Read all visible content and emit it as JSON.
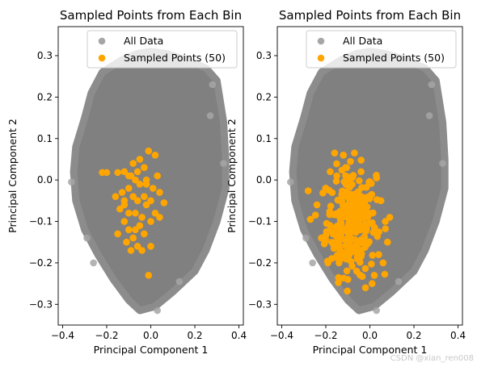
{
  "chart_data": [
    {
      "type": "scatter",
      "title": "Sampled Points from Each Bin",
      "xlabel": "Principal Component 1",
      "ylabel": "Principal Component 2",
      "xlim": [
        -0.42,
        0.42
      ],
      "ylim": [
        -0.35,
        0.37
      ],
      "xticks": [
        "−0.4",
        "−0.2",
        "0.0",
        "0.2",
        "0.4"
      ],
      "yticks": [
        "−0.3",
        "−0.2",
        "−0.1",
        "0.0",
        "0.1",
        "0.2",
        "0.3"
      ],
      "grid": false,
      "legend_position": "top-right",
      "series": [
        {
          "name": "All Data",
          "color": "#808080",
          "region_outline": [
            [
              0.0,
              0.31
            ],
            [
              0.07,
              0.305
            ],
            [
              0.16,
              0.29
            ],
            [
              0.25,
              0.27
            ],
            [
              0.3,
              0.24
            ],
            [
              0.33,
              0.14
            ],
            [
              0.34,
              0.05
            ],
            [
              0.34,
              -0.02
            ],
            [
              0.3,
              -0.1
            ],
            [
              0.25,
              -0.17
            ],
            [
              0.2,
              -0.22
            ],
            [
              0.1,
              -0.27
            ],
            [
              0.02,
              -0.305
            ],
            [
              -0.05,
              -0.315
            ],
            [
              -0.1,
              -0.29
            ],
            [
              -0.17,
              -0.24
            ],
            [
              -0.24,
              -0.18
            ],
            [
              -0.3,
              -0.12
            ],
            [
              -0.34,
              -0.05
            ],
            [
              -0.35,
              0.02
            ],
            [
              -0.34,
              0.08
            ],
            [
              -0.3,
              0.15
            ],
            [
              -0.27,
              0.21
            ],
            [
              -0.22,
              0.26
            ],
            [
              -0.13,
              0.29
            ],
            [
              -0.06,
              0.305
            ]
          ],
          "outliers": [
            [
              0.28,
              0.23
            ],
            [
              0.27,
              0.155
            ],
            [
              -0.36,
              -0.005
            ],
            [
              -0.26,
              -0.2
            ],
            [
              -0.29,
              -0.14
            ],
            [
              0.13,
              -0.245
            ],
            [
              0.03,
              -0.315
            ],
            [
              0.33,
              0.04
            ]
          ]
        },
        {
          "name": "Sampled Points (50)",
          "color": "#ffa500",
          "points": [
            [
              -0.22,
              0.018
            ],
            [
              -0.2,
              0.018
            ],
            [
              -0.15,
              0.018
            ],
            [
              -0.12,
              0.02
            ],
            [
              -0.1,
              0.01
            ],
            [
              -0.08,
              0.04
            ],
            [
              -0.05,
              0.05
            ],
            [
              -0.03,
              0.03
            ],
            [
              -0.01,
              0.07
            ],
            [
              0.02,
              0.06
            ],
            [
              0.03,
              0.01
            ],
            [
              -0.07,
              0.0
            ],
            [
              -0.1,
              -0.02
            ],
            [
              -0.05,
              -0.01
            ],
            [
              -0.02,
              -0.01
            ],
            [
              0.01,
              -0.02
            ],
            [
              0.04,
              -0.03
            ],
            [
              -0.16,
              -0.04
            ],
            [
              -0.12,
              -0.05
            ],
            [
              -0.08,
              -0.04
            ],
            [
              -0.06,
              -0.05
            ],
            [
              -0.03,
              -0.04
            ],
            [
              0.0,
              -0.05
            ],
            [
              0.06,
              -0.055
            ],
            [
              -0.14,
              -0.07
            ],
            [
              -0.1,
              -0.08
            ],
            [
              -0.07,
              -0.08
            ],
            [
              -0.04,
              -0.09
            ],
            [
              0.02,
              -0.08
            ],
            [
              -0.12,
              -0.1
            ],
            [
              -0.05,
              -0.11
            ],
            [
              -0.15,
              -0.13
            ],
            [
              -0.1,
              -0.12
            ],
            [
              -0.08,
              -0.14
            ],
            [
              -0.03,
              -0.13
            ],
            [
              -0.11,
              -0.15
            ],
            [
              -0.06,
              -0.16
            ],
            [
              -0.04,
              -0.17
            ],
            [
              0.0,
              -0.16
            ],
            [
              -0.01,
              -0.23
            ],
            [
              -0.09,
              0.01
            ],
            [
              -0.06,
              0.02
            ],
            [
              -0.02,
              -0.06
            ],
            [
              -0.13,
              -0.03
            ],
            [
              0.0,
              -0.1
            ],
            [
              -0.12,
              -0.06
            ],
            [
              -0.02,
              0.0
            ],
            [
              0.04,
              -0.09
            ],
            [
              -0.07,
              -0.12
            ],
            [
              -0.09,
              -0.17
            ]
          ]
        }
      ]
    },
    {
      "type": "scatter",
      "title": "Sampled Points from Each Bin",
      "xlabel": "Principal Component 1",
      "ylabel": "Principal Component 2",
      "xlim": [
        -0.42,
        0.42
      ],
      "ylim": [
        -0.35,
        0.37
      ],
      "xticks": [
        "−0.4",
        "−0.2",
        "0.0",
        "0.2",
        "0.4"
      ],
      "yticks": [
        "−0.3",
        "−0.2",
        "−0.1",
        "0.0",
        "0.1",
        "0.2",
        "0.3"
      ],
      "grid": false,
      "legend_position": "top-right",
      "series": [
        {
          "name": "All Data",
          "color": "#808080",
          "region_outline": [
            [
              0.0,
              0.31
            ],
            [
              0.07,
              0.305
            ],
            [
              0.16,
              0.29
            ],
            [
              0.25,
              0.27
            ],
            [
              0.3,
              0.24
            ],
            [
              0.33,
              0.14
            ],
            [
              0.34,
              0.05
            ],
            [
              0.34,
              -0.02
            ],
            [
              0.3,
              -0.1
            ],
            [
              0.25,
              -0.17
            ],
            [
              0.2,
              -0.22
            ],
            [
              0.1,
              -0.27
            ],
            [
              0.02,
              -0.305
            ],
            [
              -0.05,
              -0.315
            ],
            [
              -0.1,
              -0.29
            ],
            [
              -0.17,
              -0.24
            ],
            [
              -0.24,
              -0.18
            ],
            [
              -0.3,
              -0.12
            ],
            [
              -0.34,
              -0.05
            ],
            [
              -0.35,
              0.02
            ],
            [
              -0.34,
              0.08
            ],
            [
              -0.3,
              0.15
            ],
            [
              -0.27,
              0.21
            ],
            [
              -0.22,
              0.26
            ],
            [
              -0.13,
              0.29
            ],
            [
              -0.06,
              0.305
            ]
          ],
          "outliers": [
            [
              0.28,
              0.23
            ],
            [
              0.27,
              0.155
            ],
            [
              -0.36,
              -0.005
            ],
            [
              -0.26,
              -0.2
            ],
            [
              -0.29,
              -0.14
            ],
            [
              0.13,
              -0.245
            ],
            [
              0.03,
              -0.315
            ],
            [
              0.33,
              0.04
            ]
          ]
        },
        {
          "name": "Sampled Points (50)",
          "color": "#ffa500",
          "dense_region": {
            "x_center": -0.085,
            "x_spread": 0.07,
            "y_center": -0.1,
            "y_spread": 0.08,
            "count": 260
          },
          "points": [
            [
              -0.16,
              0.065
            ],
            [
              -0.07,
              0.065
            ],
            [
              -0.18,
              0.02
            ],
            [
              -0.15,
              0.01
            ],
            [
              -0.11,
              0.03
            ],
            [
              -0.04,
              0.02
            ],
            [
              0.03,
              0.005
            ],
            [
              -0.2,
              -0.02
            ],
            [
              -0.24,
              -0.06
            ],
            [
              -0.27,
              -0.095
            ],
            [
              -0.22,
              -0.14
            ],
            [
              -0.19,
              -0.2
            ],
            [
              0.05,
              -0.05
            ],
            [
              0.07,
              -0.1
            ],
            [
              0.08,
              -0.15
            ],
            [
              0.06,
              -0.2
            ],
            [
              0.02,
              -0.23
            ],
            [
              -0.02,
              -0.26
            ],
            [
              0.01,
              -0.25
            ],
            [
              -0.1,
              -0.24
            ],
            [
              -0.14,
              -0.2
            ],
            [
              -0.06,
              -0.22
            ],
            [
              0.04,
              -0.18
            ],
            [
              -0.01,
              -0.09
            ],
            [
              0.09,
              -0.09
            ]
          ]
        }
      ]
    }
  ],
  "watermark": "CSDN @xian_ren008"
}
